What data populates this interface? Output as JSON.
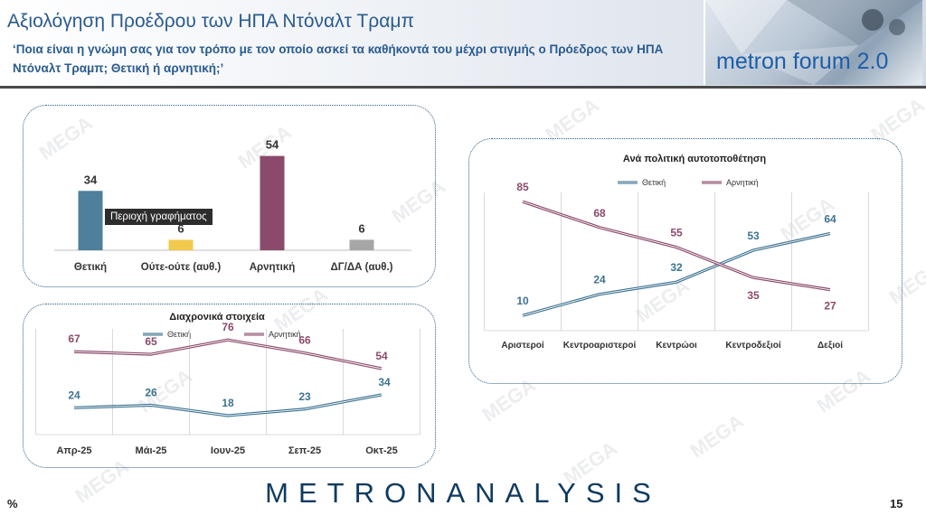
{
  "header": {
    "title": "Αξιολόγηση Προέδρου των ΗΠΑ Ντόναλτ Τραμπ",
    "subtitle": "‘Ποια είναι η γνώμη σας για τον τρόπο με τον οποίο ασκεί τα καθήκοντά του μέχρι στιγμής ο Πρόεδρος των ΗΠΑ Ντόναλτ Τραμπ; Θετική ή αρνητική;’",
    "logo_text": "metron forum 2.0"
  },
  "tooltip": "Περιοχή γραφήματος",
  "watermark": "MEGA",
  "footer": {
    "brand": "METRONANALYSIS",
    "percent": "%",
    "page": "15"
  },
  "colors": {
    "positive": "#3e7391",
    "negative": "#8b4a6b",
    "neutral": "#f2c94c",
    "dk": "#a6a6a6"
  },
  "chart_data": [
    {
      "type": "bar",
      "categories": [
        "Θετική",
        "Ούτε-ούτε (αυθ.)",
        "Αρνητική",
        "ΔΓ/ΔΑ (αυθ.)"
      ],
      "values": [
        34,
        6,
        54,
        6
      ],
      "colors": [
        "#4e7f9b",
        "#f2c94c",
        "#8b4a6b",
        "#a6a6a6"
      ],
      "ylim": [
        0,
        60
      ]
    },
    {
      "type": "line",
      "title": "Διαχρονικά στοιχεία",
      "categories": [
        "Απρ-25",
        "Μάι-25",
        "Ιουν-25",
        "Σεπ-25",
        "Οκτ-25"
      ],
      "series": [
        {
          "name": "Θετική",
          "values": [
            24,
            26,
            18,
            23,
            34
          ],
          "color": "#3e7391"
        },
        {
          "name": "Αρνητική",
          "values": [
            67,
            65,
            76,
            66,
            54
          ],
          "color": "#8b4a6b"
        }
      ],
      "legend": "top",
      "grid": false
    },
    {
      "type": "line",
      "title": "Ανά πολιτική αυτοτοποθέτηση",
      "categories": [
        "Αριστεροί",
        "Κεντροαριστεροί",
        "Κεντρώοι",
        "Κεντροδεξιοί",
        "Δεξιοί"
      ],
      "series": [
        {
          "name": "Θετική",
          "values": [
            10,
            24,
            32,
            53,
            64
          ],
          "color": "#3e7391"
        },
        {
          "name": "Αρνητική",
          "values": [
            85,
            68,
            55,
            35,
            27
          ],
          "color": "#8b4a6b"
        }
      ],
      "legend": "top",
      "grid": false
    }
  ]
}
